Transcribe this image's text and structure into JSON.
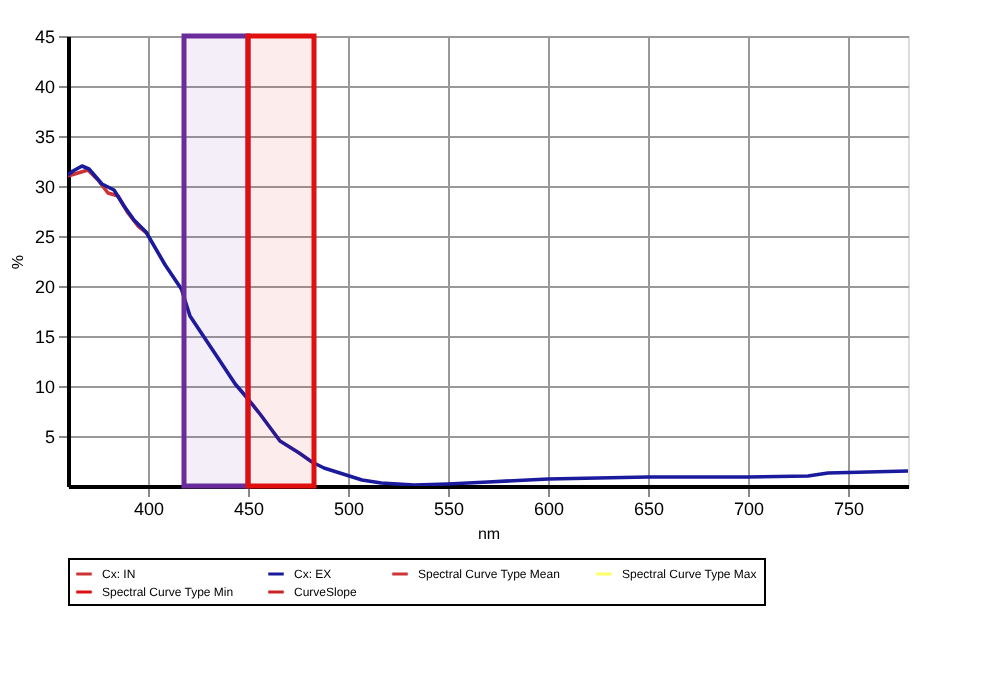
{
  "chart_data": {
    "type": "line",
    "xlabel": "nm",
    "ylabel": "%",
    "xlim": [
      360,
      780
    ],
    "xticks": [
      400,
      450,
      500,
      550,
      600,
      650,
      700,
      750
    ],
    "ylim": [
      0,
      45
    ],
    "yticks": [
      5,
      10,
      15,
      20,
      25,
      30,
      35,
      40,
      45
    ],
    "grid": true,
    "legend": "bottom",
    "marker": "none",
    "line_style": "solid",
    "series": [
      {
        "name": "Cx: IN",
        "color": "#cc3333",
        "x": [
          360,
          365,
          370,
          375,
          380,
          385,
          390,
          395,
          400
        ],
        "values": [
          31.0,
          31.3,
          31.6,
          30.6,
          29.3,
          29.0,
          27.3,
          26.0,
          25.2
        ]
      },
      {
        "name": "Cx: EX",
        "color": "#1a1a9c",
        "x": [
          360,
          362.5,
          367,
          370.5,
          377,
          383,
          388,
          393,
          399,
          408.6,
          416.7,
          421,
          426,
          434,
          443.6,
          450,
          456,
          466,
          475.6,
          482,
          488,
          497.5,
          507,
          516.6,
          533,
          550,
          570,
          600,
          650,
          700,
          730,
          740,
          780
        ],
        "values": [
          31.1,
          31.5,
          32.0,
          31.7,
          30.2,
          29.6,
          28.0,
          26.6,
          25.4,
          22.1,
          19.7,
          17.0,
          15.5,
          13.1,
          10.2,
          8.7,
          7.2,
          4.5,
          3.3,
          2.4,
          1.8,
          1.2,
          0.6,
          0.3,
          0.1,
          0.2,
          0.4,
          0.7,
          0.9,
          0.9,
          1.0,
          1.3,
          1.5
        ]
      },
      {
        "name": "Spectral Curve Type Mean",
        "color": "#cc3333"
      },
      {
        "name": "Spectral Curve Type Max",
        "color": "#ffff66"
      },
      {
        "name": "Spectral Curve Type Min",
        "color": "#dd1111"
      },
      {
        "name": "CurveSlope",
        "color": "#cc2222"
      }
    ],
    "bands": [
      {
        "axis": "x",
        "from": 418,
        "to": 450,
        "color": "#6a2c9a"
      },
      {
        "axis": "x",
        "from": 450,
        "to": 483,
        "color": "#e01010"
      }
    ]
  }
}
